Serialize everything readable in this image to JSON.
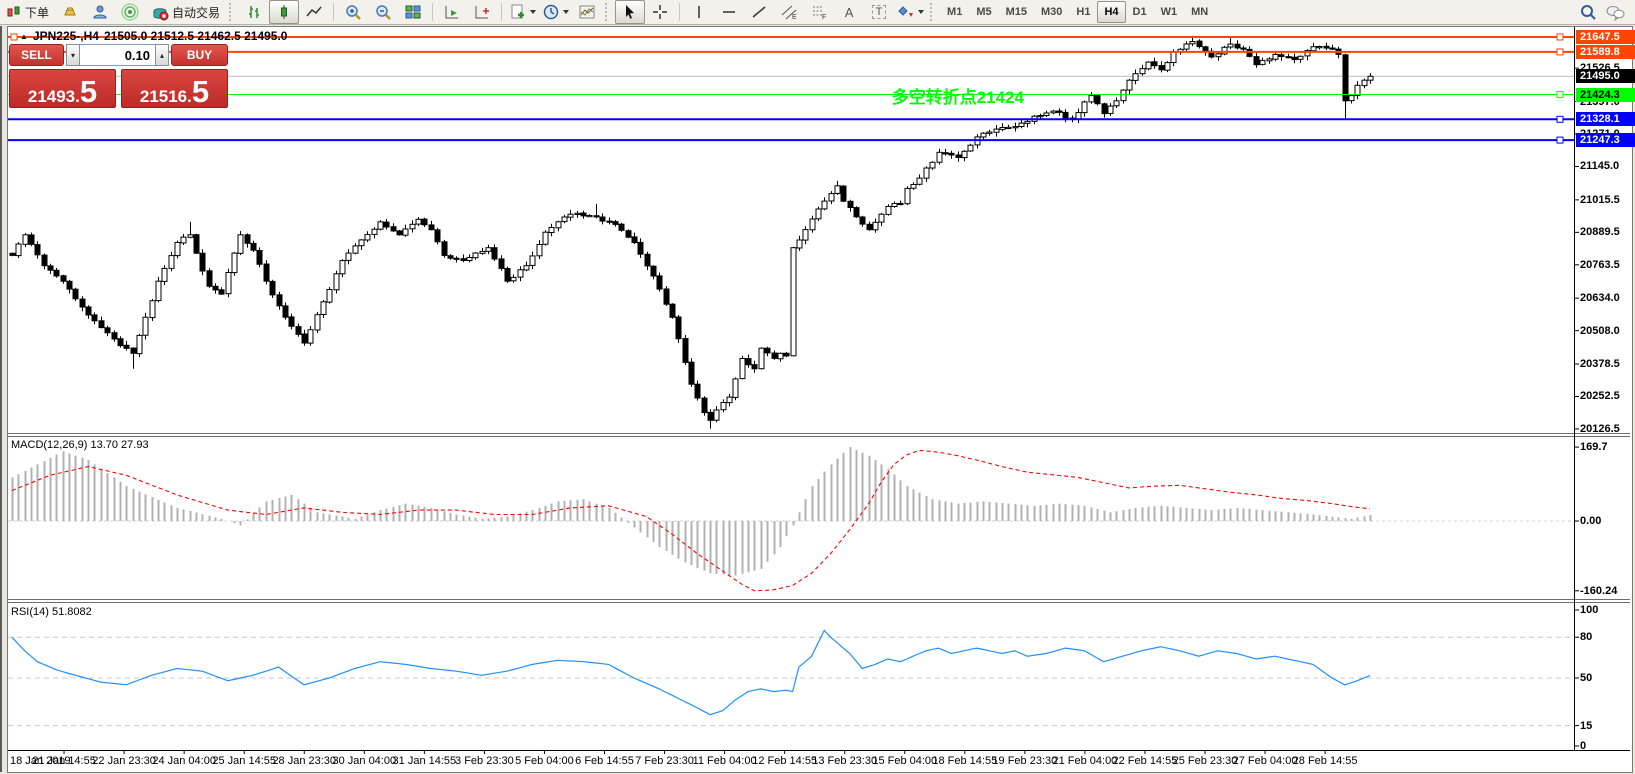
{
  "toolbar": {
    "new_order_label": "下单",
    "autotrading_label": "自动交易",
    "text_tool_glyph": "A",
    "label_tool_glyph": "T",
    "timeframes": [
      {
        "label": "M1",
        "active": false
      },
      {
        "label": "M5",
        "active": false
      },
      {
        "label": "M15",
        "active": false
      },
      {
        "label": "M30",
        "active": false
      },
      {
        "label": "H1",
        "active": false
      },
      {
        "label": "H4",
        "active": true
      },
      {
        "label": "D1",
        "active": false
      },
      {
        "label": "W1",
        "active": false
      },
      {
        "label": "MN",
        "active": false
      }
    ],
    "icons": [
      "new-order-icon",
      "gold-icon",
      "community-icon",
      "signals-icon",
      "autotrading-icon",
      "bar-chart-icon",
      "candlestick-icon",
      "line-chart-icon",
      "zoom-in-icon",
      "zoom-out-icon",
      "tile-windows-icon",
      "auto-scroll-icon",
      "chart-shift-icon",
      "new-chart-icon",
      "periods-icon",
      "templates-icon",
      "cursor-icon",
      "crosshair-icon",
      "vertical-line-icon",
      "horizontal-line-icon",
      "trendline-icon",
      "channel-icon",
      "fibonacci-icon",
      "text-icon",
      "text-label-icon",
      "shapes-icon",
      "search-icon",
      "chat-icon"
    ]
  },
  "chart": {
    "title": {
      "symbol_period": "JPN225-,H4",
      "ohlc": "21505.0 21512.5 21462.5 21495.0"
    },
    "trade_panel": {
      "sell_label": "SELL",
      "buy_label": "BUY",
      "volume": "0.10",
      "sell_price_int": "21493",
      "sell_price_frac": "5",
      "buy_price_int": "21516",
      "buy_price_frac": "5"
    },
    "annotation": {
      "text": "多空转折点21424",
      "color": "#00FF00"
    }
  },
  "colors": {
    "orange_level": "#FF4500",
    "blue_level": "#0000FF",
    "green_level": "#00FF00",
    "bid_line": "#b8b8b8",
    "current_badge_bg": "#000000",
    "macd_bars": "#b2b2b2",
    "macd_signal": "#FF0000",
    "rsi_line": "#1E90FF",
    "trade_red": "#c5322d",
    "candle_outline": "#000000"
  },
  "chart_data": [
    {
      "type": "candlestick",
      "symbol": "JPN225-",
      "period": "H4",
      "open": 21505.0,
      "high": 21512.5,
      "low": 21462.5,
      "close": 21495.0,
      "count": 215,
      "ylim": [
        20080,
        21690
      ],
      "y_ticks": [
        21526.5,
        21397.0,
        21271.0,
        21145.0,
        21015.5,
        20889.5,
        20763.5,
        20634.0,
        20508.0,
        20378.5,
        20252.5,
        20126.5
      ],
      "x_labels": [
        "18 Jan 2019",
        "21 Jan 14:55",
        "22 Jan 23:30",
        "24 Jan 04:00",
        "25 Jan 14:55",
        "28 Jan 23:30",
        "30 Jan 04:00",
        "31 Jan 14:55",
        "3 Feb 23:30",
        "5 Feb 04:00",
        "6 Feb 14:55",
        "7 Feb 23:30",
        "11 Feb 04:00",
        "12 Feb 14:55",
        "13 Feb 23:30",
        "15 Feb 04:00",
        "18 Feb 14:55",
        "19 Feb 23:30",
        "21 Feb 04:00",
        "22 Feb 14:55",
        "25 Feb 23:30",
        "27 Feb 04:00",
        "28 Feb 14:55"
      ],
      "levels": [
        {
          "value": 21647.5,
          "label": "21647.5",
          "color": "#FF4500",
          "text": "#ffffff",
          "width": 2,
          "handle": true,
          "left_handle": true
        },
        {
          "value": 21589.8,
          "label": "21589.8",
          "color": "#FF4500",
          "text": "#ffffff",
          "width": 2,
          "handle": true
        },
        {
          "value": 21495.0,
          "label": "21495.0",
          "color": "#000000",
          "text": "#ffffff",
          "line_color": "#b8b8b8",
          "width": 1,
          "handle": false
        },
        {
          "value": 21424.3,
          "label": "21424.3",
          "color": "#00FF00",
          "text": "#000000",
          "width": 1,
          "handle": true
        },
        {
          "value": 21328.1,
          "label": "21328.1",
          "color": "#0000FF",
          "text": "#ffffff",
          "width": 2,
          "handle": true
        },
        {
          "value": 21247.3,
          "label": "21247.3",
          "color": "#0000FF",
          "text": "#ffffff",
          "width": 2,
          "handle": true
        }
      ],
      "close_anchors": [
        [
          0,
          20800
        ],
        [
          2,
          20880
        ],
        [
          5,
          20760
        ],
        [
          8,
          20700
        ],
        [
          11,
          20600
        ],
        [
          14,
          20520
        ],
        [
          17,
          20450
        ],
        [
          19,
          20420
        ],
        [
          21,
          20560
        ],
        [
          23,
          20700
        ],
        [
          26,
          20850
        ],
        [
          28,
          20880
        ],
        [
          31,
          20680
        ],
        [
          33,
          20650
        ],
        [
          36,
          20880
        ],
        [
          38,
          20820
        ],
        [
          40,
          20700
        ],
        [
          43,
          20560
        ],
        [
          46,
          20460
        ],
        [
          49,
          20620
        ],
        [
          52,
          20780
        ],
        [
          55,
          20860
        ],
        [
          58,
          20930
        ],
        [
          61,
          20880
        ],
        [
          64,
          20940
        ],
        [
          66,
          20900
        ],
        [
          68,
          20800
        ],
        [
          71,
          20780
        ],
        [
          75,
          20830
        ],
        [
          78,
          20700
        ],
        [
          81,
          20760
        ],
        [
          84,
          20890
        ],
        [
          88,
          20960
        ],
        [
          92,
          20950
        ],
        [
          95,
          20920
        ],
        [
          98,
          20850
        ],
        [
          101,
          20720
        ],
        [
          104,
          20560
        ],
        [
          107,
          20300
        ],
        [
          109,
          20190
        ],
        [
          110,
          20160
        ],
        [
          111,
          20200
        ],
        [
          113,
          20250
        ],
        [
          115,
          20400
        ],
        [
          117,
          20360
        ],
        [
          118,
          20440
        ],
        [
          120,
          20400
        ],
        [
          121,
          20420
        ],
        [
          122,
          20410
        ],
        [
          123,
          20830
        ],
        [
          125,
          20900
        ],
        [
          127,
          20980
        ],
        [
          129,
          21040
        ],
        [
          130,
          21070
        ],
        [
          131,
          21010
        ],
        [
          133,
          20950
        ],
        [
          135,
          20900
        ],
        [
          137,
          20960
        ],
        [
          138,
          20990
        ],
        [
          140,
          21000
        ],
        [
          141,
          21060
        ],
        [
          143,
          21100
        ],
        [
          146,
          21200
        ],
        [
          149,
          21180
        ],
        [
          152,
          21260
        ],
        [
          155,
          21290
        ],
        [
          158,
          21300
        ],
        [
          161,
          21340
        ],
        [
          164,
          21360
        ],
        [
          167,
          21330
        ],
        [
          170,
          21420
        ],
        [
          172,
          21350
        ],
        [
          174,
          21400
        ],
        [
          176,
          21480
        ],
        [
          179,
          21550
        ],
        [
          181,
          21520
        ],
        [
          183,
          21590
        ],
        [
          186,
          21630
        ],
        [
          189,
          21570
        ],
        [
          192,
          21620
        ],
        [
          194,
          21600
        ],
        [
          196,
          21540
        ],
        [
          199,
          21580
        ],
        [
          202,
          21560
        ],
        [
          205,
          21610
        ],
        [
          208,
          21600
        ],
        [
          209,
          21580
        ],
        [
          210,
          21400
        ],
        [
          211,
          21420
        ],
        [
          212,
          21460
        ],
        [
          213,
          21480
        ],
        [
          214,
          21495
        ]
      ],
      "low_overrides": [
        [
          19,
          20360
        ],
        [
          110,
          20128
        ],
        [
          210,
          21330
        ]
      ],
      "high_overrides": [
        [
          28,
          20930
        ],
        [
          92,
          21000
        ],
        [
          130,
          21090
        ],
        [
          186,
          21652
        ],
        [
          192,
          21650
        ]
      ],
      "noise": 14
    },
    {
      "type": "bar",
      "name": "MACD",
      "label": "MACD(12,26,9) 13.70 27.93",
      "params": "12,26,9",
      "main_value": 13.7,
      "signal_value": 27.93,
      "ylim": [
        -185,
        195
      ],
      "y_ticks": [
        {
          "v": 169.7,
          "t": "169.7"
        },
        {
          "v": 0,
          "t": "0.00"
        },
        {
          "v": -160.24,
          "t": "-160.24"
        }
      ],
      "hist_anchors": [
        [
          0,
          100
        ],
        [
          4,
          130
        ],
        [
          8,
          160
        ],
        [
          12,
          140
        ],
        [
          18,
          80
        ],
        [
          26,
          30
        ],
        [
          33,
          5
        ],
        [
          36,
          -10
        ],
        [
          40,
          45
        ],
        [
          44,
          60
        ],
        [
          48,
          20
        ],
        [
          54,
          5
        ],
        [
          58,
          25
        ],
        [
          62,
          40
        ],
        [
          66,
          30
        ],
        [
          70,
          15
        ],
        [
          74,
          5
        ],
        [
          78,
          10
        ],
        [
          82,
          25
        ],
        [
          86,
          45
        ],
        [
          90,
          50
        ],
        [
          94,
          30
        ],
        [
          98,
          -15
        ],
        [
          102,
          -60
        ],
        [
          106,
          -95
        ],
        [
          110,
          -120
        ],
        [
          114,
          -125
        ],
        [
          118,
          -110
        ],
        [
          121,
          -60
        ],
        [
          123,
          -10
        ],
        [
          126,
          80
        ],
        [
          129,
          130
        ],
        [
          132,
          169.7
        ],
        [
          135,
          150
        ],
        [
          138,
          120
        ],
        [
          141,
          80
        ],
        [
          145,
          50
        ],
        [
          149,
          40
        ],
        [
          153,
          45
        ],
        [
          157,
          40
        ],
        [
          161,
          35
        ],
        [
          165,
          40
        ],
        [
          169,
          35
        ],
        [
          173,
          20
        ],
        [
          177,
          30
        ],
        [
          181,
          35
        ],
        [
          185,
          30
        ],
        [
          189,
          25
        ],
        [
          193,
          30
        ],
        [
          197,
          25
        ],
        [
          201,
          20
        ],
        [
          205,
          15
        ],
        [
          209,
          8
        ],
        [
          211,
          5
        ],
        [
          214,
          13.7
        ]
      ],
      "signal_anchors": [
        [
          0,
          70
        ],
        [
          6,
          105
        ],
        [
          12,
          125
        ],
        [
          18,
          105
        ],
        [
          26,
          60
        ],
        [
          34,
          25
        ],
        [
          40,
          15
        ],
        [
          46,
          30
        ],
        [
          52,
          20
        ],
        [
          58,
          15
        ],
        [
          64,
          25
        ],
        [
          70,
          25
        ],
        [
          76,
          15
        ],
        [
          82,
          15
        ],
        [
          88,
          30
        ],
        [
          94,
          35
        ],
        [
          100,
          10
        ],
        [
          104,
          -30
        ],
        [
          108,
          -75
        ],
        [
          112,
          -115
        ],
        [
          115,
          -145
        ],
        [
          117,
          -160.24
        ],
        [
          120,
          -158
        ],
        [
          123,
          -148
        ],
        [
          126,
          -120
        ],
        [
          129,
          -75
        ],
        [
          132,
          -20
        ],
        [
          135,
          40
        ],
        [
          137,
          90
        ],
        [
          139,
          130
        ],
        [
          141,
          152
        ],
        [
          143,
          162
        ],
        [
          146,
          158
        ],
        [
          149,
          150
        ],
        [
          152,
          140
        ],
        [
          156,
          125
        ],
        [
          160,
          112
        ],
        [
          164,
          106
        ],
        [
          168,
          100
        ],
        [
          172,
          88
        ],
        [
          176,
          76
        ],
        [
          180,
          80
        ],
        [
          184,
          82
        ],
        [
          188,
          74
        ],
        [
          192,
          66
        ],
        [
          196,
          60
        ],
        [
          200,
          52
        ],
        [
          204,
          47
        ],
        [
          208,
          40
        ],
        [
          211,
          33
        ],
        [
          214,
          27.93
        ]
      ]
    },
    {
      "type": "line",
      "name": "RSI",
      "label": "RSI(14) 51.8082",
      "period": 14,
      "value": 51.8082,
      "ylim": [
        0,
        100
      ],
      "y_ticks": [
        100,
        80,
        50,
        15,
        0
      ],
      "levels": [
        80,
        50,
        15
      ],
      "color": "#1E90FF",
      "anchors": [
        [
          0,
          80
        ],
        [
          2,
          70
        ],
        [
          4,
          62
        ],
        [
          7,
          56
        ],
        [
          10,
          52
        ],
        [
          14,
          47
        ],
        [
          18,
          45
        ],
        [
          22,
          52
        ],
        [
          26,
          57
        ],
        [
          30,
          55
        ],
        [
          34,
          48
        ],
        [
          38,
          52
        ],
        [
          42,
          58
        ],
        [
          46,
          45
        ],
        [
          50,
          50
        ],
        [
          54,
          57
        ],
        [
          58,
          62
        ],
        [
          62,
          60
        ],
        [
          66,
          57
        ],
        [
          70,
          55
        ],
        [
          74,
          52
        ],
        [
          78,
          55
        ],
        [
          82,
          60
        ],
        [
          86,
          63
        ],
        [
          90,
          62
        ],
        [
          94,
          60
        ],
        [
          98,
          50
        ],
        [
          102,
          42
        ],
        [
          105,
          35
        ],
        [
          108,
          28
        ],
        [
          110,
          23
        ],
        [
          112,
          26
        ],
        [
          114,
          34
        ],
        [
          116,
          40
        ],
        [
          118,
          42
        ],
        [
          120,
          40
        ],
        [
          122,
          41
        ],
        [
          123,
          40
        ],
        [
          124,
          58
        ],
        [
          126,
          66
        ],
        [
          128,
          85
        ],
        [
          129,
          80
        ],
        [
          130,
          76
        ],
        [
          132,
          68
        ],
        [
          134,
          57
        ],
        [
          136,
          60
        ],
        [
          138,
          64
        ],
        [
          140,
          62
        ],
        [
          142,
          66
        ],
        [
          144,
          70
        ],
        [
          146,
          72
        ],
        [
          148,
          68
        ],
        [
          150,
          70
        ],
        [
          152,
          72
        ],
        [
          154,
          70
        ],
        [
          156,
          68
        ],
        [
          158,
          70
        ],
        [
          160,
          66
        ],
        [
          163,
          68
        ],
        [
          166,
          72
        ],
        [
          169,
          70
        ],
        [
          172,
          62
        ],
        [
          175,
          66
        ],
        [
          178,
          70
        ],
        [
          181,
          73
        ],
        [
          184,
          70
        ],
        [
          187,
          66
        ],
        [
          190,
          70
        ],
        [
          193,
          68
        ],
        [
          196,
          64
        ],
        [
          199,
          66
        ],
        [
          202,
          63
        ],
        [
          205,
          60
        ],
        [
          208,
          50
        ],
        [
          210,
          45
        ],
        [
          212,
          48
        ],
        [
          214,
          51.8
        ]
      ]
    }
  ]
}
